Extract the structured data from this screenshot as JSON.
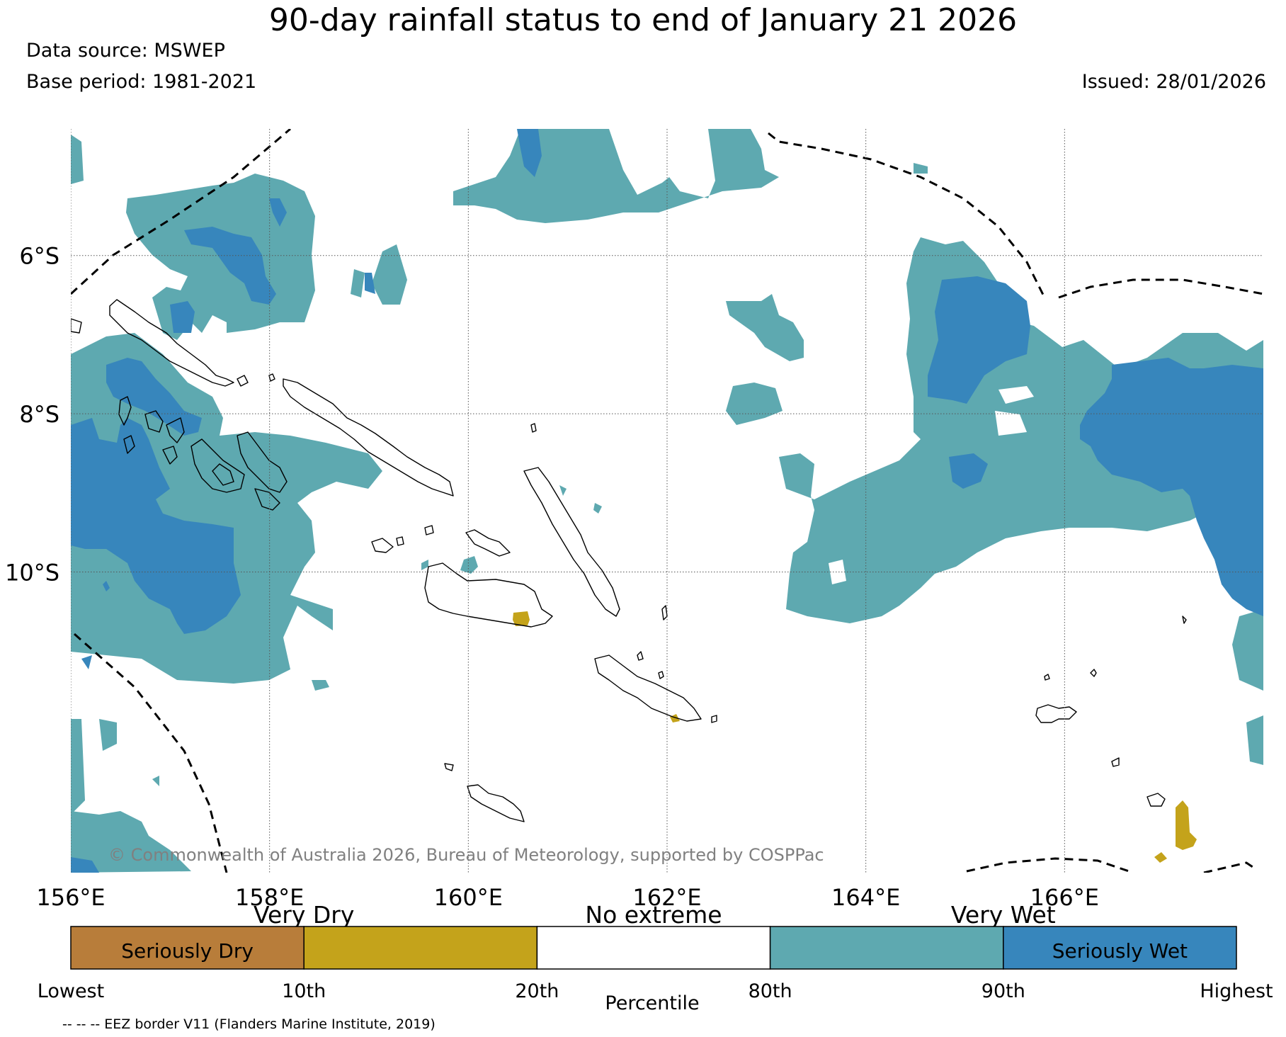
{
  "header": {
    "title": "90-day rainfall status to end of January 21 2026",
    "data_source": "Data source: MSWEP",
    "base_period": "Base period: 1981-2021",
    "issued": "Issued: 28/01/2026"
  },
  "map": {
    "lon_range": [
      156,
      168
    ],
    "lat_range": [
      -13.8,
      -4.4
    ],
    "lon_ticks": [
      {
        "value": 156,
        "label": "156°E"
      },
      {
        "value": 158,
        "label": "158°E"
      },
      {
        "value": 160,
        "label": "160°E"
      },
      {
        "value": 162,
        "label": "162°E"
      },
      {
        "value": 164,
        "label": "164°E"
      },
      {
        "value": 166,
        "label": "166°E"
      }
    ],
    "lat_ticks": [
      {
        "value": -6,
        "label": "6°S"
      },
      {
        "value": -8,
        "label": "8°S"
      },
      {
        "value": -10,
        "label": "10°S"
      }
    ],
    "grid": true,
    "copyright": "© Commonwealth of Australia 2026, Bureau of Meteorology, supported by COSPPac",
    "colors": {
      "seriously_dry": "#b87d3a",
      "very_dry": "#c4a31b",
      "no_extreme": "#ffffff",
      "very_wet": "#5ea9b0",
      "seriously_wet": "#3786bc",
      "coastline": "#000000",
      "eez": "#000000",
      "grid": "#555555"
    }
  },
  "legend": {
    "top_labels": [
      {
        "text": "Very Dry"
      },
      {
        "text": "No extreme"
      },
      {
        "text": "Very Wet"
      }
    ],
    "boxes": [
      {
        "label": "Seriously Dry",
        "color": "#b87d3a"
      },
      {
        "label": "",
        "color": "#c4a31b"
      },
      {
        "label": "",
        "color": "#ffffff"
      },
      {
        "label": "",
        "color": "#5ea9b0"
      },
      {
        "label": "Seriously Wet",
        "color": "#3786bc"
      }
    ],
    "ticks": [
      "Lowest",
      "10th",
      "20th",
      "80th",
      "90th",
      "Highest"
    ],
    "axis_label": "Percentile"
  },
  "footer": {
    "eez_note": "-- -- -- EEZ border V11 (Flanders Marine Institute, 2019)"
  }
}
